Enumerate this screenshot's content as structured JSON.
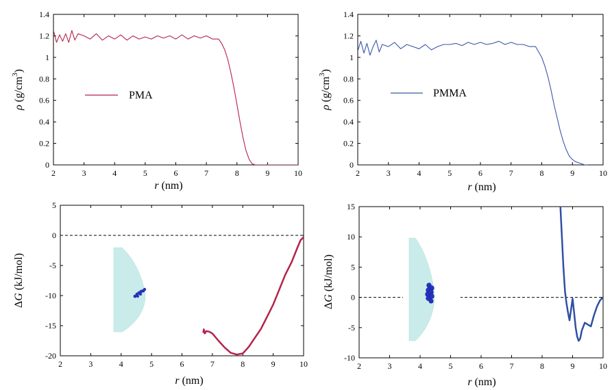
{
  "chart_data": [
    {
      "type": "line",
      "panel": "top-left",
      "xlabel_var": "r",
      "xlabel_unit": " (nm)",
      "ylabel_var": "ρ",
      "ylabel_unit": " (g/cm",
      "ylabel_sup": "3",
      "ylabel_close": ")",
      "xlim": [
        2,
        10
      ],
      "ylim": [
        0,
        1.4
      ],
      "xticks": [
        2,
        3,
        4,
        5,
        6,
        7,
        8,
        9,
        10
      ],
      "xtick_labels": [
        "2",
        "3",
        "4",
        "5",
        "6",
        "7",
        "8",
        "9",
        "10"
      ],
      "yticks": [
        0,
        0.2,
        0.4,
        0.6,
        0.8,
        1.0,
        1.2,
        1.4
      ],
      "ytick_labels": [
        "0",
        "0.2",
        "0.4",
        "0.6",
        "0.8",
        "1",
        "1.2",
        "1.4"
      ],
      "legend": {
        "text": "PMA",
        "position": "center-left"
      },
      "series": [
        {
          "name": "PMA",
          "color": "#b5224a",
          "x": [
            2.0,
            2.1,
            2.2,
            2.3,
            2.4,
            2.5,
            2.6,
            2.7,
            2.8,
            3.0,
            3.2,
            3.4,
            3.6,
            3.8,
            4.0,
            4.2,
            4.4,
            4.6,
            4.8,
            5.0,
            5.2,
            5.4,
            5.6,
            5.8,
            6.0,
            6.2,
            6.4,
            6.6,
            6.8,
            7.0,
            7.2,
            7.4,
            7.5,
            7.6,
            7.7,
            7.8,
            7.9,
            8.0,
            8.1,
            8.2,
            8.3,
            8.4,
            8.5,
            8.6,
            8.8,
            9.0,
            9.5,
            10.0
          ],
          "values": [
            1.25,
            1.14,
            1.21,
            1.15,
            1.22,
            1.14,
            1.25,
            1.16,
            1.22,
            1.2,
            1.17,
            1.22,
            1.16,
            1.2,
            1.17,
            1.21,
            1.16,
            1.2,
            1.17,
            1.19,
            1.17,
            1.2,
            1.18,
            1.2,
            1.17,
            1.21,
            1.17,
            1.2,
            1.18,
            1.2,
            1.17,
            1.17,
            1.13,
            1.07,
            0.98,
            0.86,
            0.72,
            0.56,
            0.4,
            0.25,
            0.13,
            0.05,
            0.01,
            0.0,
            0.0,
            0.0,
            0.0,
            0.0
          ]
        }
      ]
    },
    {
      "type": "line",
      "panel": "top-right",
      "xlabel_var": "r",
      "xlabel_unit": " (nm)",
      "ylabel_var": "ρ",
      "ylabel_unit": " (g/cm",
      "ylabel_sup": "3",
      "ylabel_close": ")",
      "xlim": [
        2,
        10
      ],
      "ylim": [
        0,
        1.4
      ],
      "xticks": [
        2,
        3,
        4,
        5,
        6,
        7,
        8,
        9,
        10
      ],
      "xtick_labels": [
        "2",
        "3",
        "4",
        "5",
        "6",
        "7",
        "8",
        "9",
        "10"
      ],
      "yticks": [
        0,
        0.2,
        0.4,
        0.6,
        0.8,
        1.0,
        1.2,
        1.4
      ],
      "ytick_labels": [
        "0",
        "0.2",
        "0.4",
        "0.6",
        "0.8",
        "1",
        "1.2",
        "1.4"
      ],
      "legend": {
        "text": "PMMA",
        "position": "center-left"
      },
      "series": [
        {
          "name": "PMMA",
          "color": "#3a56a8",
          "x": [
            2.0,
            2.1,
            2.2,
            2.3,
            2.4,
            2.5,
            2.6,
            2.7,
            2.8,
            3.0,
            3.2,
            3.4,
            3.6,
            3.8,
            4.0,
            4.2,
            4.4,
            4.6,
            4.8,
            5.0,
            5.2,
            5.4,
            5.6,
            5.8,
            6.0,
            6.2,
            6.4,
            6.6,
            6.8,
            7.0,
            7.2,
            7.4,
            7.6,
            7.8,
            7.9,
            8.0,
            8.1,
            8.2,
            8.3,
            8.4,
            8.5,
            8.6,
            8.7,
            8.8,
            8.9,
            9.0,
            9.1,
            9.2,
            9.3,
            9.4,
            9.5
          ],
          "values": [
            1.06,
            1.15,
            1.04,
            1.13,
            1.02,
            1.1,
            1.16,
            1.05,
            1.12,
            1.1,
            1.14,
            1.08,
            1.12,
            1.1,
            1.08,
            1.12,
            1.07,
            1.1,
            1.12,
            1.12,
            1.13,
            1.11,
            1.14,
            1.12,
            1.14,
            1.12,
            1.13,
            1.15,
            1.12,
            1.14,
            1.12,
            1.12,
            1.1,
            1.1,
            1.05,
            1.0,
            0.92,
            0.82,
            0.7,
            0.56,
            0.44,
            0.32,
            0.22,
            0.14,
            0.08,
            0.05,
            0.03,
            0.02,
            0.01,
            0.0,
            0.0
          ]
        }
      ]
    },
    {
      "type": "line",
      "panel": "bottom-left",
      "xlabel_var": "r",
      "xlabel_unit": " (nm)",
      "ylabel_var": "G",
      "ylabel_prefix": "Δ",
      "ylabel_unit": " (kJ/mol)",
      "xlim": [
        2,
        10
      ],
      "ylim": [
        -20,
        5
      ],
      "xticks": [
        2,
        3,
        4,
        5,
        6,
        7,
        8,
        9,
        10
      ],
      "xtick_labels": [
        "2",
        "3",
        "4",
        "5",
        "6",
        "7",
        "8",
        "9",
        "10"
      ],
      "yticks": [
        -20,
        -15,
        -10,
        -5,
        0,
        5
      ],
      "ytick_labels": [
        "-20",
        "-15",
        "-10",
        "-5",
        "0",
        "5"
      ],
      "zero_line": 0,
      "series": [
        {
          "name": "PMA",
          "color": "#b5224a",
          "x": [
            6.7,
            6.72,
            6.75,
            6.8,
            6.9,
            7.0,
            7.2,
            7.4,
            7.6,
            7.8,
            8.0,
            8.2,
            8.4,
            8.6,
            8.8,
            9.0,
            9.2,
            9.4,
            9.6,
            9.8,
            9.9,
            10.0
          ],
          "values": [
            -16.2,
            -15.6,
            -16.3,
            -15.9,
            -16.0,
            -16.3,
            -17.5,
            -18.6,
            -19.5,
            -19.8,
            -19.6,
            -18.5,
            -17.0,
            -15.5,
            -13.5,
            -11.5,
            -9.0,
            -6.5,
            -4.5,
            -2.0,
            -0.8,
            -0.3
          ]
        }
      ]
    },
    {
      "type": "line",
      "panel": "bottom-right",
      "xlabel_var": "r",
      "xlabel_unit": " (nm)",
      "ylabel_var": "G",
      "ylabel_prefix": "Δ",
      "ylabel_unit": " (kJ/mol)",
      "xlim": [
        2,
        10
      ],
      "ylim": [
        -10,
        15
      ],
      "xticks": [
        2,
        3,
        4,
        5,
        6,
        7,
        8,
        9,
        10
      ],
      "xtick_labels": [
        "2",
        "3",
        "4",
        "5",
        "6",
        "7",
        "8",
        "9",
        "10"
      ],
      "yticks": [
        -10,
        -5,
        0,
        5,
        10,
        15
      ],
      "ytick_labels": [
        "-10",
        "-5",
        "0",
        "5",
        "10",
        "15"
      ],
      "zero_line": 0,
      "series": [
        {
          "name": "PMMA",
          "color": "#2f4fa3",
          "x": [
            8.6,
            8.65,
            8.7,
            8.75,
            8.8,
            8.85,
            8.9,
            8.95,
            9.0,
            9.05,
            9.1,
            9.15,
            9.2,
            9.25,
            9.3,
            9.4,
            9.5,
            9.6,
            9.7,
            9.8,
            9.9,
            10.0
          ],
          "values": [
            15.0,
            10.0,
            5.0,
            1.0,
            -1.0,
            -2.5,
            -3.8,
            -2.0,
            -0.2,
            -2.5,
            -5.0,
            -6.5,
            -7.2,
            -6.8,
            -5.5,
            -4.2,
            -4.5,
            -4.8,
            -3.0,
            -1.5,
            -0.5,
            0.0
          ]
        }
      ]
    }
  ]
}
